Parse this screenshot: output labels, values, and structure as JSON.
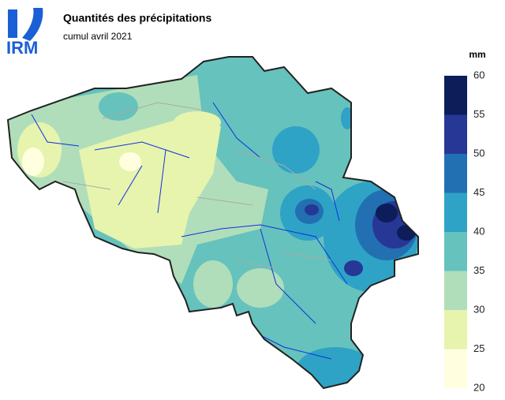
{
  "logo": "IRM",
  "title": "Quantités des précipitations",
  "subtitle": "cumul avril 2021",
  "legend": {
    "unit": "mm",
    "ticks": [
      20,
      25,
      30,
      35,
      40,
      45,
      50,
      55,
      60
    ],
    "colors": [
      "#ffffe0",
      "#e6f4ae",
      "#b0deba",
      "#66c2bc",
      "#2ea3c6",
      "#2270b2",
      "#263796",
      "#0d1d5a"
    ]
  }
}
